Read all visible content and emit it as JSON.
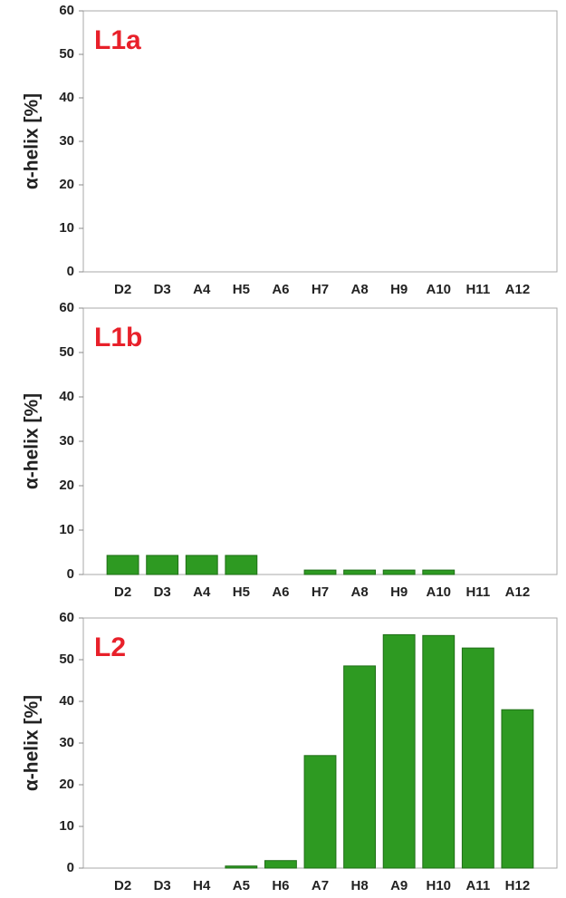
{
  "chart_data": [
    {
      "type": "bar",
      "annotation": "L1a",
      "ylabel": "α-helix [%]",
      "categories": [
        "D2",
        "D3",
        "A4",
        "H5",
        "A6",
        "H7",
        "A8",
        "H9",
        "A10",
        "H11",
        "A12"
      ],
      "values": [
        0,
        0,
        0,
        0,
        0,
        0,
        0,
        0,
        0,
        0,
        0
      ],
      "color": "#2e9a22",
      "ylim": [
        0,
        60
      ],
      "yticks": [
        0,
        10,
        20,
        30,
        40,
        50,
        60
      ]
    },
    {
      "type": "bar",
      "annotation": "L1b",
      "ylabel": "α-helix [%]",
      "categories": [
        "D2",
        "D3",
        "A4",
        "H5",
        "A6",
        "H7",
        "A8",
        "H9",
        "A10",
        "H11",
        "A12"
      ],
      "values": [
        4.3,
        4.3,
        4.3,
        4.3,
        0,
        1,
        1,
        1,
        1,
        0,
        0
      ],
      "color": "#2e9a22",
      "ylim": [
        0,
        60
      ],
      "yticks": [
        0,
        10,
        20,
        30,
        40,
        50,
        60
      ]
    },
    {
      "type": "bar",
      "annotation": "L2",
      "ylabel": "α-helix [%]",
      "categories": [
        "D2",
        "D3",
        "H4",
        "A5",
        "H6",
        "A7",
        "H8",
        "A9",
        "H10",
        "A11",
        "H12"
      ],
      "values": [
        0,
        0,
        0,
        0.5,
        1.8,
        27,
        48.5,
        56,
        55.8,
        52.8,
        38
      ],
      "color": "#2e9a22",
      "ylim": [
        0,
        60
      ],
      "yticks": [
        0,
        10,
        20,
        30,
        40,
        50,
        60
      ]
    }
  ]
}
